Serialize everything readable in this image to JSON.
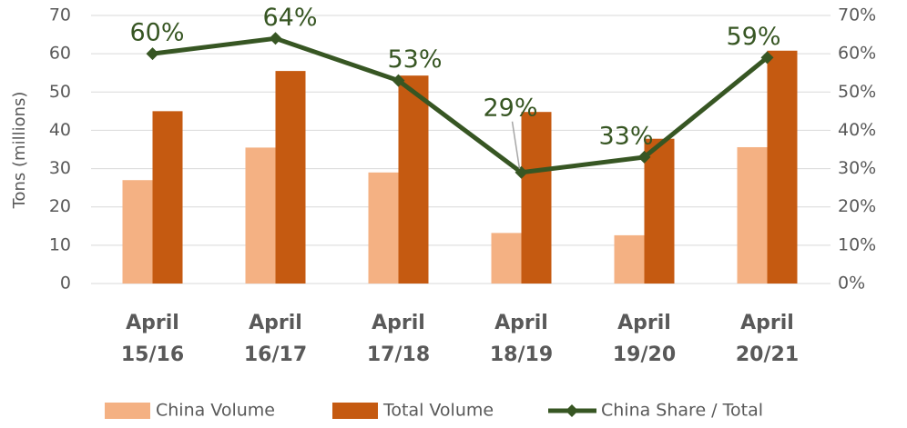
{
  "chart_data": {
    "type": "bar",
    "y_label": "Tons (millions)",
    "categories": [
      "April 15/16",
      "April 16/17",
      "April 17/18",
      "April 18/19",
      "April 19/20",
      "April 20/21"
    ],
    "series": [
      {
        "name": "China Volume",
        "type": "bar",
        "color": "#f4b183",
        "values": [
          27,
          35.5,
          29,
          13.2,
          12.6,
          35.6
        ]
      },
      {
        "name": "Total Volume",
        "type": "bar",
        "color": "#c55a11",
        "values": [
          45,
          55.5,
          54.3,
          44.8,
          37.8,
          60.8
        ]
      },
      {
        "name": "China Share / Total",
        "type": "line",
        "axis": "y2",
        "color": "#375623",
        "values": [
          60,
          64,
          53,
          29,
          33,
          59
        ],
        "value_labels": [
          "60%",
          "64%",
          "53%",
          "29%",
          "33%",
          "59%"
        ]
      }
    ],
    "ylim": [
      0,
      70
    ],
    "yticks": [
      0,
      10,
      20,
      30,
      40,
      50,
      60,
      70
    ],
    "y2lim": [
      0,
      70
    ],
    "y2ticks": [
      {
        "value": 0,
        "label": "0%"
      },
      {
        "value": 10,
        "label": "10%"
      },
      {
        "value": 20,
        "label": "20%"
      },
      {
        "value": 30,
        "label": "30%"
      },
      {
        "value": 40,
        "label": "40%"
      },
      {
        "value": 50,
        "label": "50%"
      },
      {
        "value": 60,
        "label": "60%"
      },
      {
        "value": 70,
        "label": "70%"
      }
    ],
    "grid": true,
    "legend": "bottom"
  }
}
